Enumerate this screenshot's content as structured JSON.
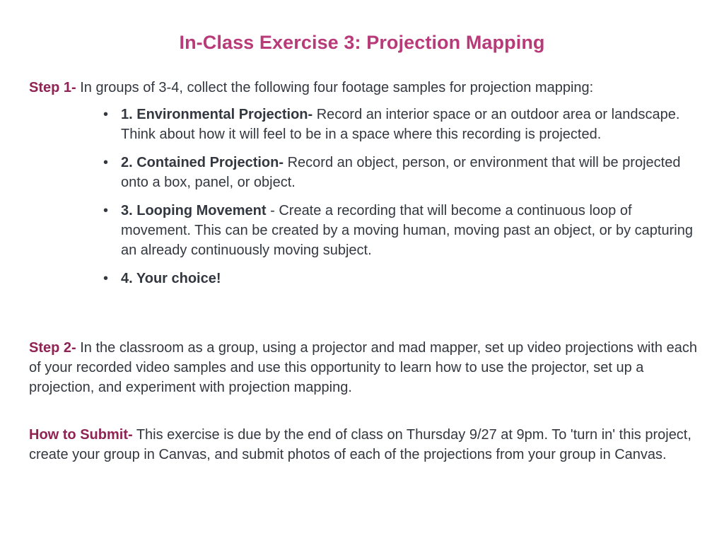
{
  "title": "In-Class Exercise 3: Projection Mapping",
  "step1": {
    "label": "Step 1-",
    "text": " In groups of 3-4, collect the following four footage samples for projection mapping:",
    "items": [
      {
        "title": "1. Environmental Projection-",
        "text": " Record an interior space or an outdoor area or landscape. Think about how it will feel to be in a space where this recording is projected."
      },
      {
        "title": "2. Contained Projection-",
        "text": " Record an object, person, or environment that will be projected onto a box, panel, or object."
      },
      {
        "title": "3. Looping Movement",
        "text": " - Create a recording that will become a continuous loop of movement. This can be created by a moving human, moving past an object, or by capturing an already continuously moving subject."
      },
      {
        "title": "4. Your choice!",
        "text": ""
      }
    ]
  },
  "step2": {
    "label": "Step 2-",
    "text": " In the classroom as a group, using a projector and mad mapper, set up video projections with each of your recorded video samples and use this opportunity to learn how to use the projector, set up a projection, and experiment with projection mapping."
  },
  "submit": {
    "label": "How to Submit-",
    "text": " This exercise is due by the end of class on Thursday 9/27 at 9pm. To 'turn in' this project, create your group in Canvas, and submit photos of each of the projections from your group in Canvas."
  },
  "colors": {
    "title": "#b83a78",
    "label": "#8f2454",
    "body_text": "#333840"
  }
}
